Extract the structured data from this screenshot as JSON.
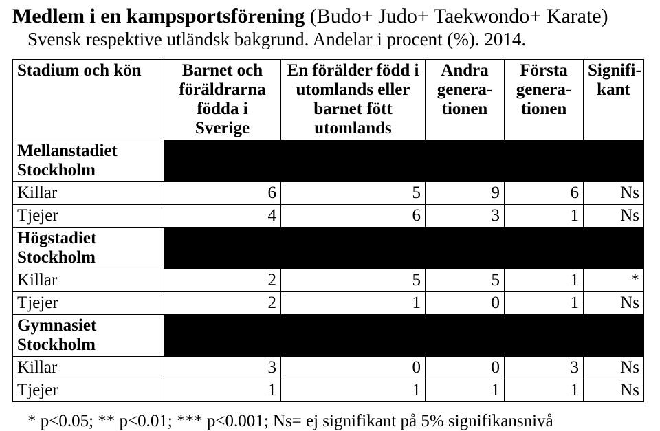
{
  "title": {
    "bold": "Medlem i en kampsportsförening",
    "rest": " (Budo+ Judo+ Taekwondo+ Karate)"
  },
  "subtitle": "Svensk respektive utländsk bakgrund. Andelar i procent (%). 2014.",
  "columns": {
    "c1": "Stadium och kön",
    "c2": "Barnet och föräldrarna födda i Sverige",
    "c3": "En förälder född i utomlands eller barnet fött utomlands",
    "c4": "Andra genera-tionen",
    "c5": "Första genera-tionen",
    "c6": "Signifi-kant"
  },
  "sections": [
    {
      "name": "Mellanstadiet Stockholm",
      "rows": [
        {
          "label": "Killar",
          "v": [
            "6",
            "5",
            "9",
            "6",
            "Ns"
          ]
        },
        {
          "label": "Tjejer",
          "v": [
            "4",
            "6",
            "3",
            "1",
            "Ns"
          ]
        }
      ]
    },
    {
      "name": "Högstadiet Stockholm",
      "rows": [
        {
          "label": "Killar",
          "v": [
            "2",
            "5",
            "5",
            "1",
            "*"
          ]
        },
        {
          "label": "Tjejer",
          "v": [
            "2",
            "1",
            "0",
            "1",
            "Ns"
          ]
        }
      ]
    },
    {
      "name": "Gymnasiet Stockholm",
      "rows": [
        {
          "label": "Killar",
          "v": [
            "3",
            "0",
            "0",
            "3",
            "Ns"
          ]
        },
        {
          "label": "Tjejer",
          "v": [
            "1",
            "1",
            "1",
            "1",
            "Ns"
          ]
        }
      ]
    }
  ],
  "footnote": "* p<0.05; ** p<0.01; *** p<0.001; Ns= ej signifikant på 5% signifikansnivå"
}
